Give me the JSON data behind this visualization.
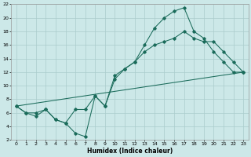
{
  "xlabel": "Humidex (Indice chaleur)",
  "bg_color": "#cce8e8",
  "grid_color": "#aacccc",
  "line_color": "#1a6b5a",
  "xlim": [
    -0.5,
    23.5
  ],
  "ylim": [
    2,
    22
  ],
  "xticks": [
    0,
    1,
    2,
    3,
    4,
    5,
    6,
    7,
    8,
    9,
    10,
    11,
    12,
    13,
    14,
    15,
    16,
    17,
    18,
    19,
    20,
    21,
    22,
    23
  ],
  "yticks": [
    2,
    4,
    6,
    8,
    10,
    12,
    14,
    16,
    18,
    20,
    22
  ],
  "line1_x": [
    0,
    1,
    2,
    3,
    4,
    5,
    6,
    7,
    8,
    9,
    10,
    11,
    12,
    13,
    14,
    15,
    16,
    17,
    18,
    19,
    20,
    21,
    22,
    23
  ],
  "line1_y": [
    7,
    6,
    5.5,
    6.5,
    5,
    4.5,
    3,
    2.5,
    8.5,
    7,
    11,
    12.5,
    13.5,
    16,
    18.5,
    20,
    21,
    21.5,
    18,
    17,
    15,
    13.5,
    12,
    12
  ],
  "line2_x": [
    0,
    1,
    2,
    3,
    4,
    5,
    6,
    7,
    8,
    9,
    10,
    11,
    12,
    13,
    14,
    15,
    16,
    17,
    18,
    19,
    20,
    21,
    22,
    23
  ],
  "line2_y": [
    7,
    6,
    6,
    6.5,
    5,
    4.5,
    6.5,
    6.5,
    8.5,
    7,
    11.5,
    12.5,
    13.5,
    15,
    16,
    16.5,
    17,
    18,
    17,
    16.5,
    16.5,
    15,
    13.5,
    12
  ],
  "line3_x": [
    0,
    23
  ],
  "line3_y": [
    7,
    12
  ]
}
